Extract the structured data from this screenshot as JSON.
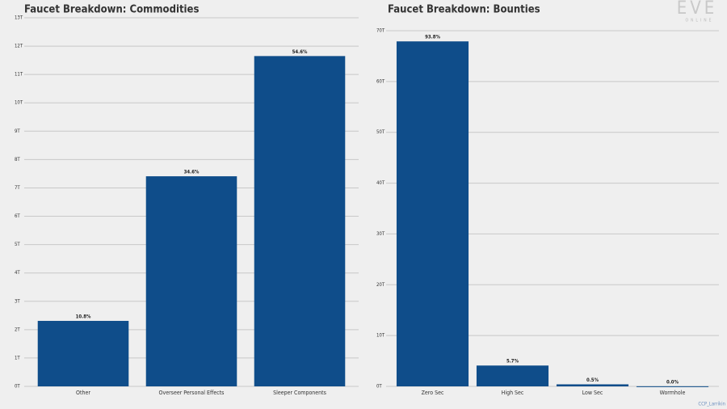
{
  "chart_data": [
    {
      "type": "bar",
      "title": "Faucet Breakdown: Commodities",
      "color": "#0f4d8a",
      "grid": true,
      "categories": [
        "Other",
        "Overseer Personal Effects",
        "Sleeper Components"
      ],
      "values": [
        2.31,
        7.41,
        11.65
      ],
      "share_labels": [
        "10.8%",
        "34.6%",
        "54.6%"
      ],
      "ylim": [
        0,
        13
      ],
      "yticks": [
        {
          "value": 0,
          "label": "0T"
        },
        {
          "value": 1,
          "label": "1T"
        },
        {
          "value": 2,
          "label": "2T"
        },
        {
          "value": 3,
          "label": "3T"
        },
        {
          "value": 4,
          "label": "4T"
        },
        {
          "value": 5,
          "label": "5T"
        },
        {
          "value": 6,
          "label": "6T"
        },
        {
          "value": 7,
          "label": "7T"
        },
        {
          "value": 8,
          "label": "8T"
        },
        {
          "value": 9,
          "label": "9T"
        },
        {
          "value": 10,
          "label": "10T"
        },
        {
          "value": 11,
          "label": "11T"
        },
        {
          "value": 12,
          "label": "12T"
        },
        {
          "value": 13,
          "label": "13T"
        }
      ]
    },
    {
      "type": "bar",
      "title": "Faucet Breakdown: Bounties",
      "color": "#0f4d8a",
      "grid": true,
      "categories": [
        "Zero Sec",
        "High Sec",
        "Low Sec",
        "Wormhole"
      ],
      "values": [
        67.9,
        4.1,
        0.4,
        0.02
      ],
      "share_labels": [
        "93.8%",
        "5.7%",
        "0.5%",
        "0.0%"
      ],
      "ylim": [
        0,
        70
      ],
      "yticks": [
        {
          "value": 0,
          "label": "0T"
        },
        {
          "value": 10,
          "label": "10T"
        },
        {
          "value": 20,
          "label": "20T"
        },
        {
          "value": 30,
          "label": "30T"
        },
        {
          "value": 40,
          "label": "40T"
        },
        {
          "value": 50,
          "label": "50T"
        },
        {
          "value": 60,
          "label": "60T"
        },
        {
          "value": 70,
          "label": "70T"
        }
      ]
    }
  ],
  "logo": {
    "main": "EVE",
    "sub": "ONLINE"
  },
  "credit": "CCP_Larrikin"
}
